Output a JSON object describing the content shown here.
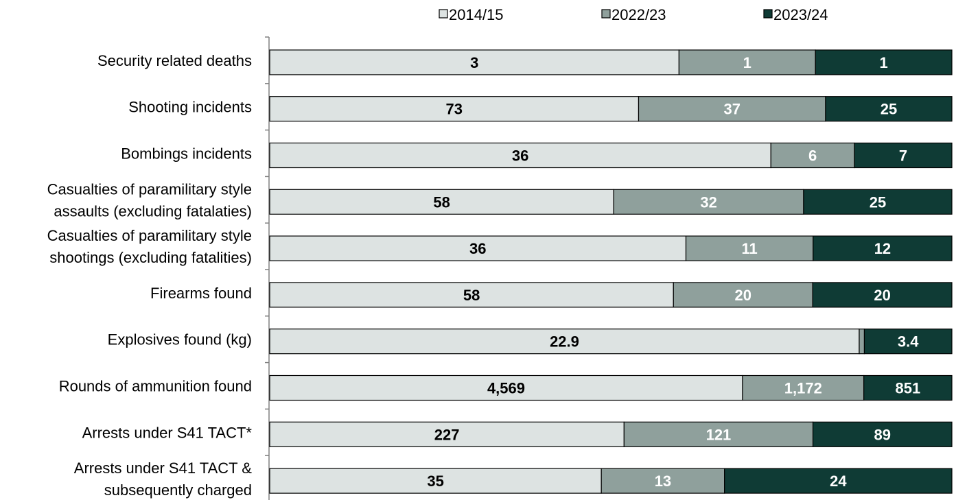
{
  "chart_data": {
    "type": "bar",
    "orientation": "horizontal",
    "stacked": "percent",
    "title": "",
    "xlabel": "",
    "ylabel": "",
    "grid": false,
    "legend_position": "top",
    "categories": [
      [
        "Security related deaths"
      ],
      [
        "Shooting incidents"
      ],
      [
        "Bombings incidents"
      ],
      [
        "Casualties of paramilitary style",
        "assaults (excluding fatalaties)"
      ],
      [
        "Casualties of paramilitary style",
        "shootings (excluding fatalities)"
      ],
      [
        "Firearms found"
      ],
      [
        "Explosives found (kg)"
      ],
      [
        "Rounds of ammunition found"
      ],
      [
        "Arrests under S41 TACT*"
      ],
      [
        "Arrests under S41 TACT &",
        "subsequently charged"
      ]
    ],
    "series": [
      {
        "name": "2014/15",
        "color": "#dde3e2",
        "label_color": "#000000",
        "values": [
          3,
          73,
          36,
          58,
          36,
          58,
          22.9,
          4569,
          227,
          35
        ],
        "labels": [
          "3",
          "73",
          "36",
          "58",
          "36",
          "58",
          "22.9",
          "4,569",
          "227",
          "35"
        ]
      },
      {
        "name": "2022/23",
        "color": "#8fa09c",
        "label_color": "#ffffff",
        "values": [
          1,
          37,
          6,
          32,
          11,
          20,
          0.2,
          1172,
          121,
          13
        ],
        "labels": [
          "1",
          "37",
          "6",
          "32",
          "11",
          "20",
          "",
          "1,172",
          "121",
          "13"
        ]
      },
      {
        "name": "2023/24",
        "color": "#0f3b35",
        "label_color": "#ffffff",
        "values": [
          1,
          25,
          7,
          25,
          12,
          20,
          3.4,
          851,
          89,
          24
        ],
        "labels": [
          "1",
          "25",
          "7",
          "25",
          "12",
          "20",
          "3.4",
          "851",
          "89",
          "24"
        ]
      }
    ]
  }
}
